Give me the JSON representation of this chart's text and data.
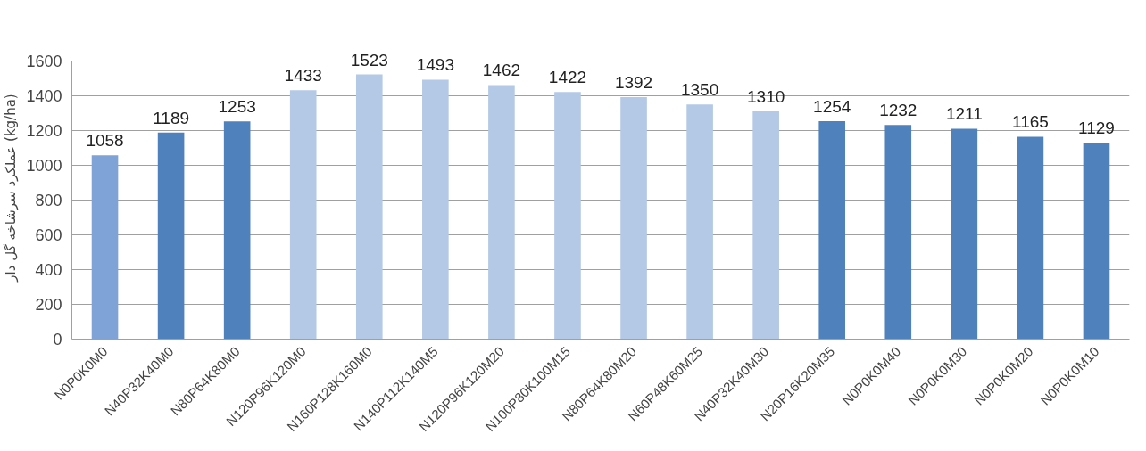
{
  "chart_data": {
    "type": "bar",
    "ylabel": "عملکرد سرشاخه گل دار (kg/ha)",
    "categories": [
      "N0P0K0M0",
      "N40P32K40M0",
      "N80P64K80M0",
      "N120P96K120M0",
      "N160P128K160M0",
      "N140P112K140M5",
      "N120P96K120M20",
      "N100P80K100M15",
      "N80P64K80M20",
      "N60P48K60M25",
      "N40P32K40M30",
      "N20P16K20M35",
      "N0P0K0M40",
      "N0P0K0M30",
      "N0P0K0M20",
      "N0P0K0M10"
    ],
    "values": [
      1058,
      1189,
      1253,
      1433,
      1523,
      1493,
      1462,
      1422,
      1392,
      1350,
      1310,
      1254,
      1232,
      1211,
      1165,
      1129
    ],
    "colors": [
      "#7fa3d6",
      "#4f81bd",
      "#4f81bd",
      "#b4c9e6",
      "#b4c9e6",
      "#b4c9e6",
      "#b4c9e6",
      "#b4c9e6",
      "#b4c9e6",
      "#b4c9e6",
      "#b4c9e6",
      "#4f81bd",
      "#4f81bd",
      "#4f81bd",
      "#4f81bd",
      "#4f81bd"
    ],
    "ylim": [
      0,
      1600
    ],
    "yticks": [
      0,
      200,
      400,
      600,
      800,
      1000,
      1200,
      1400,
      1600
    ],
    "grid": "y",
    "data_labels": true
  }
}
